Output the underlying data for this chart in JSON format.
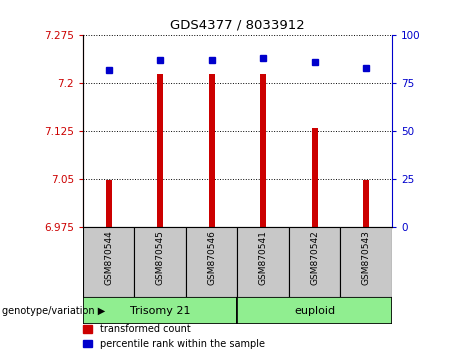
{
  "title": "GDS4377 / 8033912",
  "samples": [
    "GSM870544",
    "GSM870545",
    "GSM870546",
    "GSM870541",
    "GSM870542",
    "GSM870543"
  ],
  "red_values": [
    7.048,
    7.215,
    7.215,
    7.215,
    7.13,
    7.048
  ],
  "blue_values": [
    82,
    87,
    87,
    88,
    86,
    83
  ],
  "ylim_left": [
    6.975,
    7.275
  ],
  "ylim_right": [
    0,
    100
  ],
  "yticks_left": [
    6.975,
    7.05,
    7.125,
    7.2,
    7.275
  ],
  "yticks_right": [
    0,
    25,
    50,
    75,
    100
  ],
  "ytick_labels_left": [
    "6.975",
    "7.05",
    "7.125",
    "7.2",
    "7.275"
  ],
  "ytick_labels_right": [
    "0",
    "25",
    "50",
    "75",
    "100"
  ],
  "group1_label": "Trisomy 21",
  "group2_label": "euploid",
  "group_label_prefix": "genotype/variation",
  "legend_red": "transformed count",
  "legend_blue": "percentile rank within the sample",
  "bar_color": "#cc0000",
  "blue_color": "#0000cc",
  "group_bg": "#90ee90",
  "tick_label_bg": "#c8c8c8",
  "bar_width": 0.12,
  "grid_color": "black",
  "grid_linestyle": "dotted"
}
